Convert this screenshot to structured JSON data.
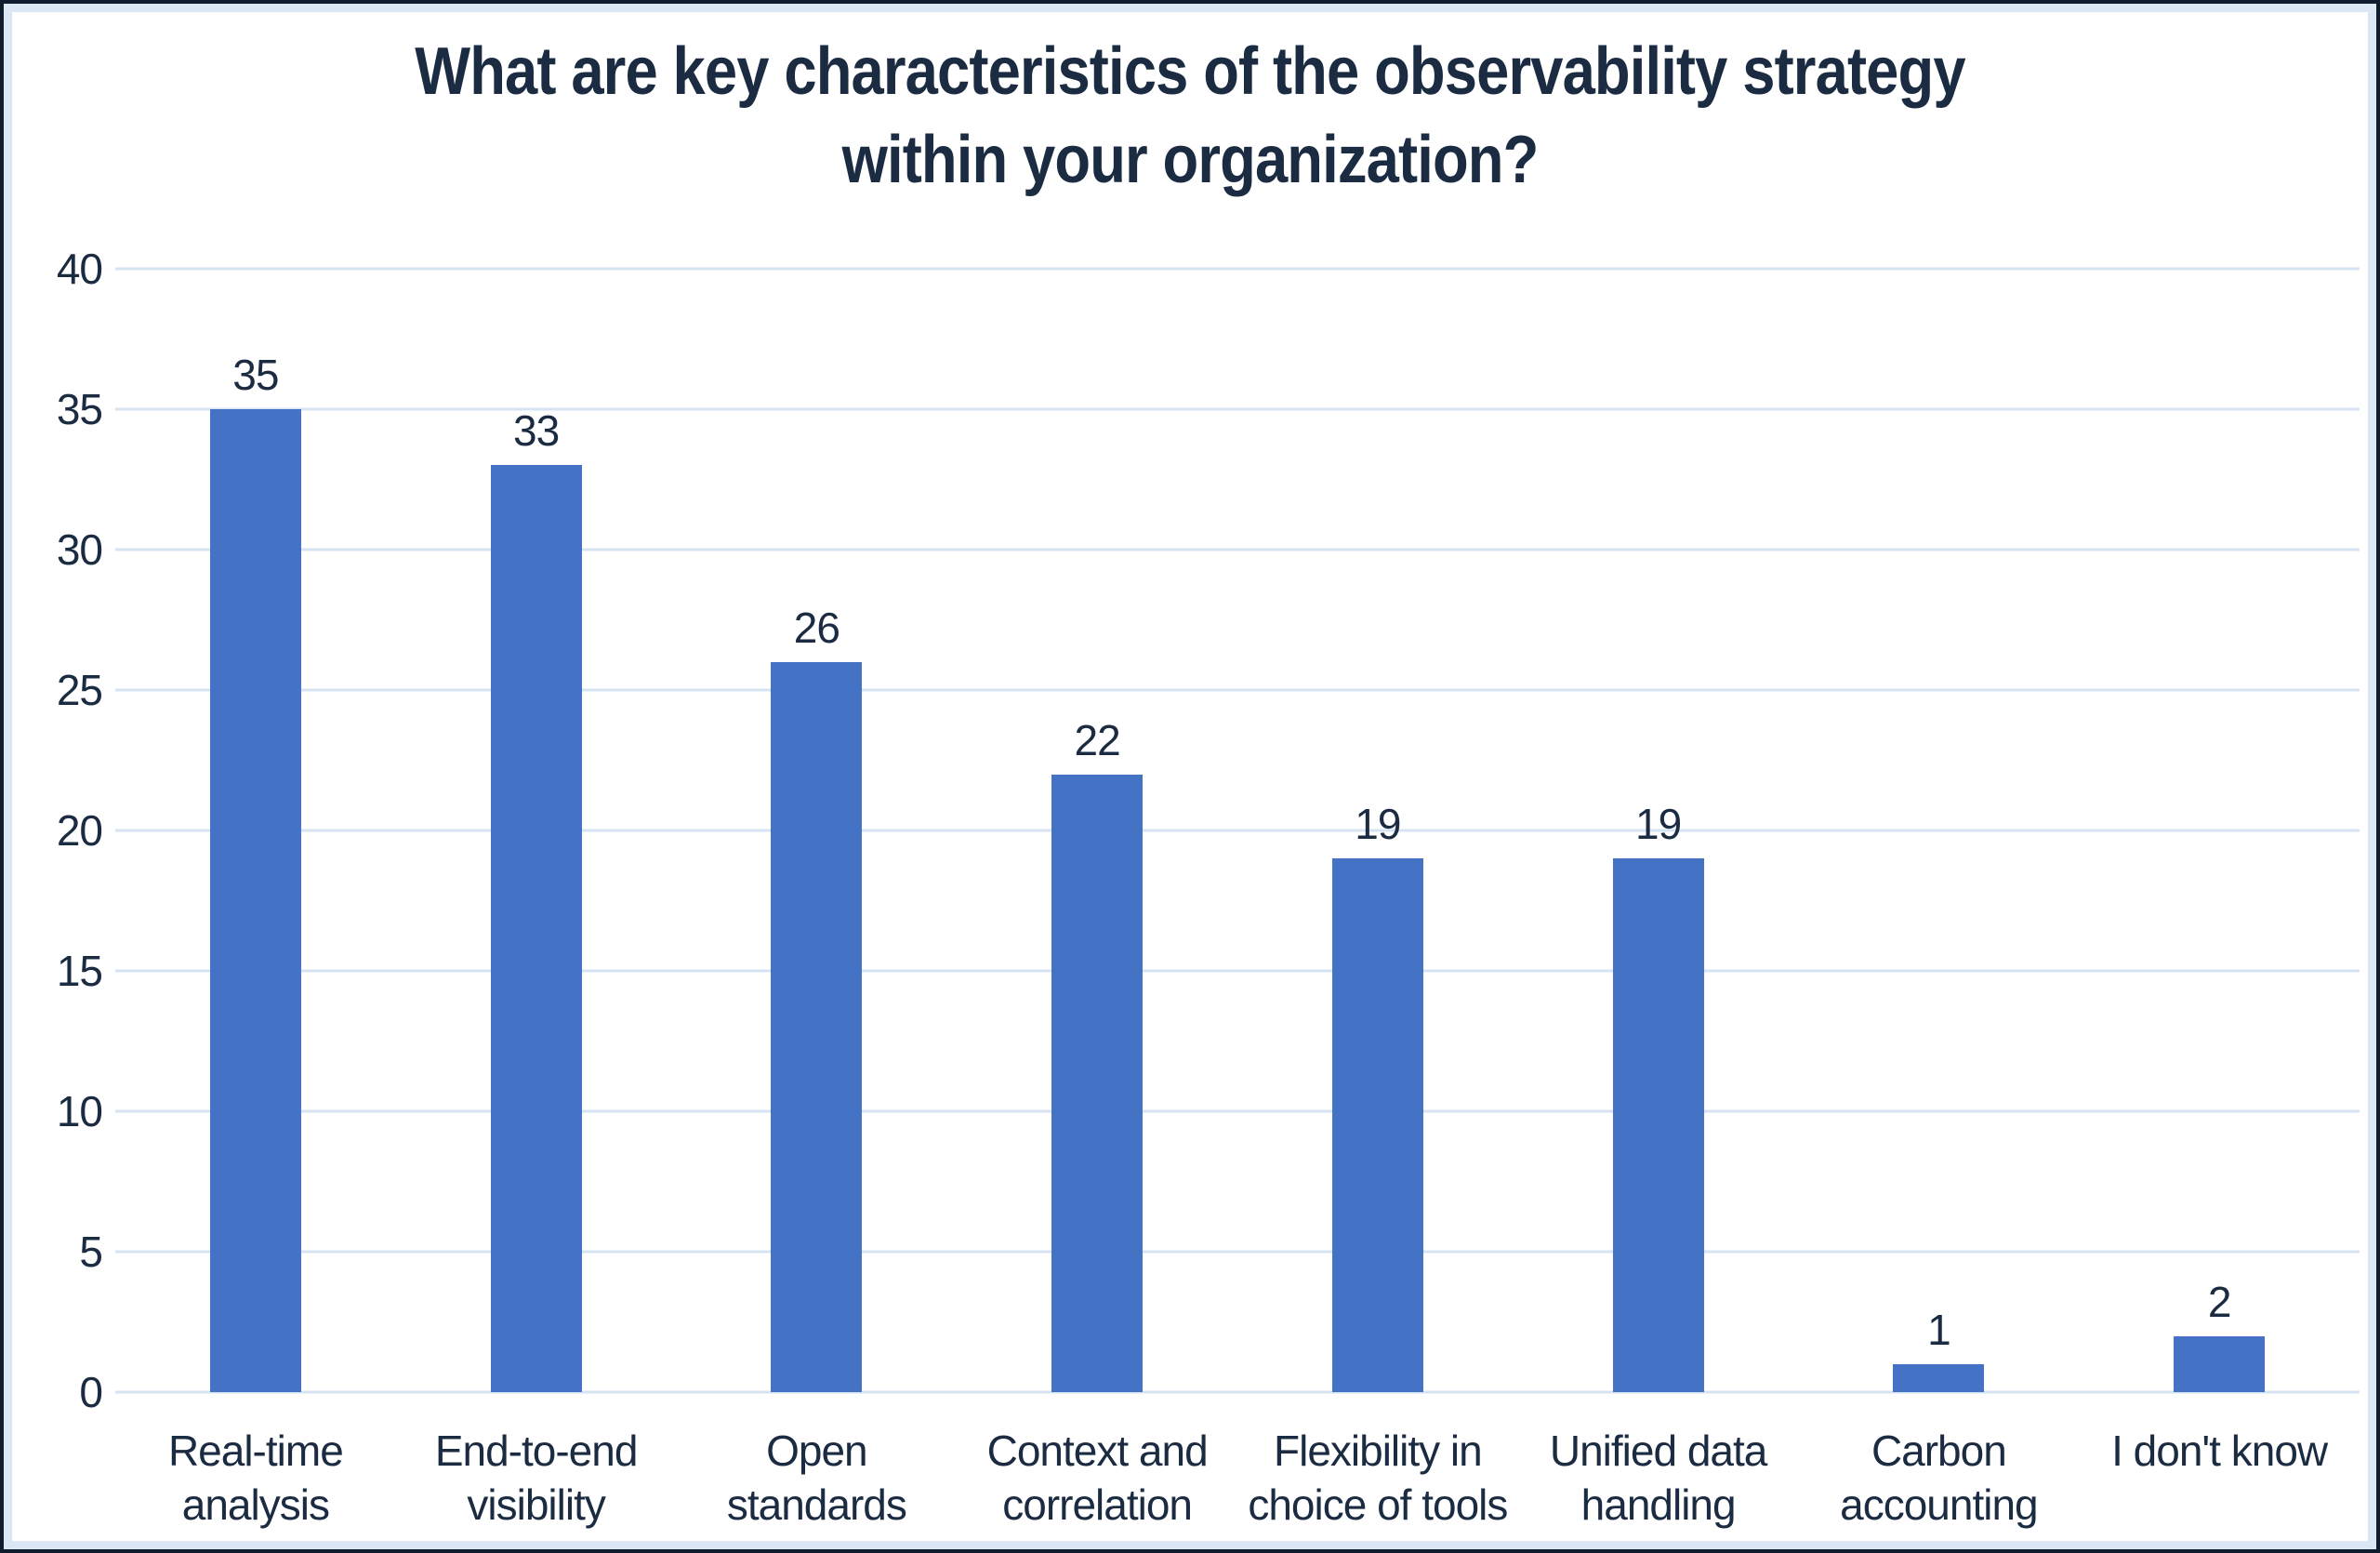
{
  "chart_data": {
    "type": "bar",
    "title": "What are key characteristics of the observability strategy within your organization?",
    "title_lines": [
      "What are key characteristics of the observability strategy",
      "within your organization?"
    ],
    "categories": [
      "Real-time analysis",
      "End-to-end visibility",
      "Open standards",
      "Context and correlation",
      "Flexibility in choice of tools",
      "Unified data handling",
      "Carbon accounting",
      "I don't know"
    ],
    "category_lines": [
      [
        "Real-time",
        "analysis"
      ],
      [
        "End-to-end",
        "visibility"
      ],
      [
        "Open",
        "standards"
      ],
      [
        "Context and",
        "correlation"
      ],
      [
        "Flexibility in",
        "choice of tools"
      ],
      [
        "Unified data",
        "handling"
      ],
      [
        "Carbon",
        "accounting"
      ],
      [
        "I don't know"
      ]
    ],
    "values": [
      35,
      33,
      26,
      22,
      19,
      19,
      1,
      2
    ],
    "ylim": [
      0,
      40
    ],
    "yticks": [
      0,
      5,
      10,
      15,
      20,
      25,
      30,
      35,
      40
    ],
    "grid": "horizontal",
    "legend": "none",
    "xlabel": "",
    "ylabel": "",
    "colors": {
      "bar": "#4472C4",
      "text": "#1B2B42",
      "gridline": "#D5E3F3",
      "frame_outer": "#0F1B2E",
      "frame_inner_band": "#DBE7F5",
      "background": "#FFFFFF"
    }
  }
}
